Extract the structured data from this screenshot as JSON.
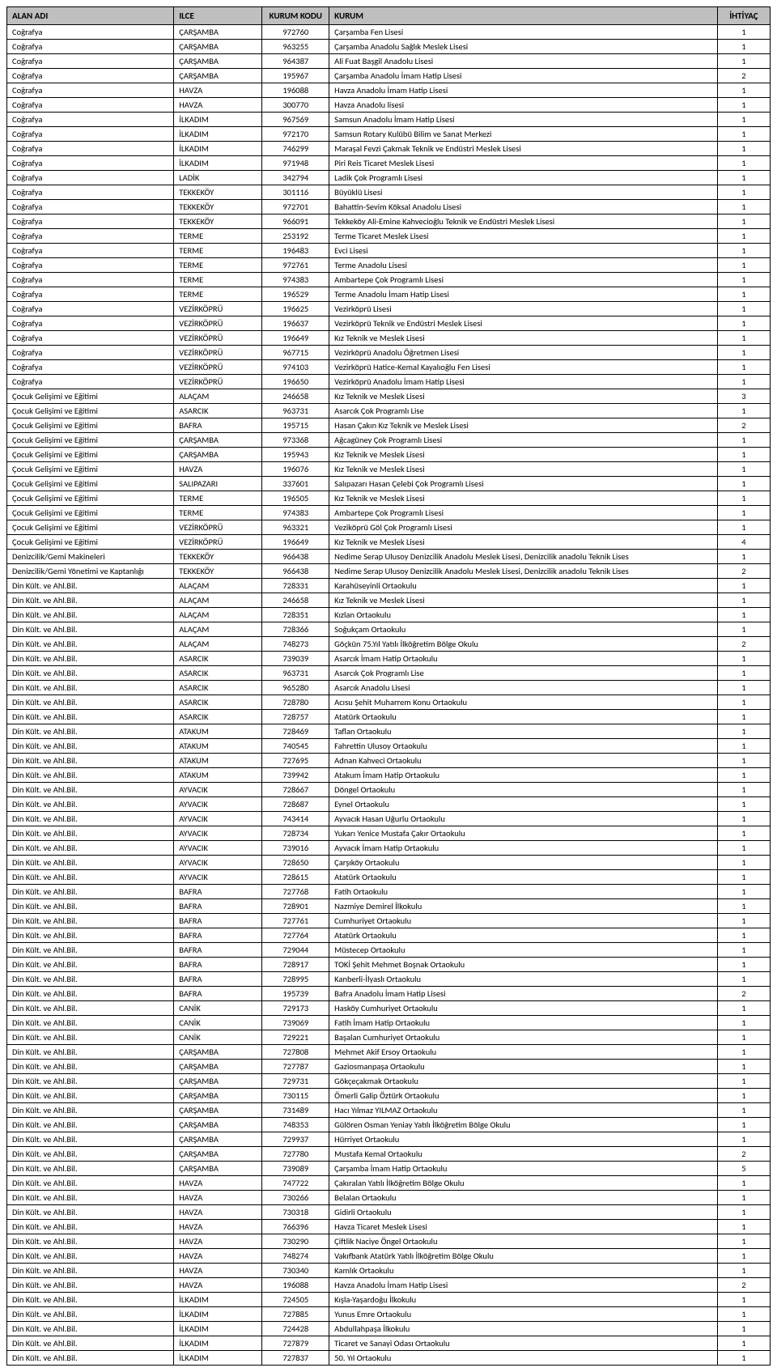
{
  "headers": {
    "alan": "ALAN ADI",
    "ilce": "ILCE",
    "kod": "KURUM KODU",
    "kurum": "KURUM",
    "ihtiyac": "İHTİYAÇ"
  },
  "rows": [
    [
      "Coğrafya",
      "ÇARŞAMBA",
      "972760",
      "Çarşamba Fen Lisesi",
      "1"
    ],
    [
      "Coğrafya",
      "ÇARŞAMBA",
      "963255",
      "Çarşamba Anadolu Sağlık Meslek Lisesi",
      "1"
    ],
    [
      "Coğrafya",
      "ÇARŞAMBA",
      "964387",
      "Ali Fuat Başgil Anadolu Lisesi",
      "1"
    ],
    [
      "Coğrafya",
      "ÇARŞAMBA",
      "195967",
      "Çarşamba Anadolu İmam Hatip Lisesi",
      "2"
    ],
    [
      "Coğrafya",
      "HAVZA",
      "196088",
      "Havza Anadolu İmam Hatip Lisesi",
      "1"
    ],
    [
      "Coğrafya",
      "HAVZA",
      "300770",
      "Havza Anadolu lisesi",
      "1"
    ],
    [
      "Coğrafya",
      "İLKADIM",
      "967569",
      "Samsun Anadolu İmam Hatip Lisesi",
      "1"
    ],
    [
      "Coğrafya",
      "İLKADIM",
      "972170",
      "Samsun Rotary Kulübü Bilim ve Sanat Merkezi",
      "1"
    ],
    [
      "Coğrafya",
      "İLKADIM",
      "746299",
      "Maraşal Fevzi Çakmak Teknik ve Endüstri Meslek Lisesi",
      "1"
    ],
    [
      "Coğrafya",
      "İLKADIM",
      "971948",
      "Piri Reis Ticaret Meslek Lisesi",
      "1"
    ],
    [
      "Coğrafya",
      "LADİK",
      "342794",
      "Ladik Çok Programlı Lisesi",
      "1"
    ],
    [
      "Coğrafya",
      "TEKKEKÖY",
      "301116",
      "Büyüklü Lisesi",
      "1"
    ],
    [
      "Coğrafya",
      "TEKKEKÖY",
      "972701",
      "Bahattin-Sevim Köksal Anadolu Lisesi",
      "1"
    ],
    [
      "Coğrafya",
      "TEKKEKÖY",
      "966091",
      "Tekkeköy Ali-Emine Kahvecioğlu Teknik ve Endüstri Meslek Lisesi",
      "1"
    ],
    [
      "Coğrafya",
      "TERME",
      "253192",
      "Terme Ticaret Meslek Lisesi",
      "1"
    ],
    [
      "Coğrafya",
      "TERME",
      "196483",
      "Evci Lisesi",
      "1"
    ],
    [
      "Coğrafya",
      "TERME",
      "972761",
      "Terme Anadolu Lisesi",
      "1"
    ],
    [
      "Coğrafya",
      "TERME",
      "974383",
      "Ambartepe Çok Programlı Lisesi",
      "1"
    ],
    [
      "Coğrafya",
      "TERME",
      "196529",
      "Terme Anadolu İmam Hatip Lisesi",
      "1"
    ],
    [
      "Coğrafya",
      "VEZİRKÖPRÜ",
      "196625",
      "Vezirköprü Lisesi",
      "1"
    ],
    [
      "Coğrafya",
      "VEZİRKÖPRÜ",
      "196637",
      "Vezirköprü Teknik ve Endüstri Meslek Lisesi",
      "1"
    ],
    [
      "Coğrafya",
      "VEZİRKÖPRÜ",
      "196649",
      "Kız Teknik ve Meslek Lisesi",
      "1"
    ],
    [
      "Coğrafya",
      "VEZİRKÖPRÜ",
      "967715",
      "Vezirköprü Anadolu Öğretmen Lisesi",
      "1"
    ],
    [
      "Coğrafya",
      "VEZİRKÖPRÜ",
      "974103",
      "Vezirköprü Hatice-Kemal Kayalıoğlu Fen Lisesi",
      "1"
    ],
    [
      "Coğrafya",
      "VEZİRKÖPRÜ",
      "196650",
      "Vezirköprü Anadolu İmam Hatip Lisesi",
      "1"
    ],
    [
      "Çocuk Gelişimi ve Eğitimi",
      "ALAÇAM",
      "246658",
      "Kız Teknik ve Meslek Lisesi",
      "3"
    ],
    [
      "Çocuk Gelişimi ve Eğitimi",
      "ASARCIK",
      "963731",
      "Asarcık Çok Programlı Lise",
      "1"
    ],
    [
      "Çocuk Gelişimi ve Eğitimi",
      "BAFRA",
      "195715",
      "Hasan Çakın Kız Teknik ve Meslek Lisesi",
      "2"
    ],
    [
      "Çocuk Gelişimi ve Eğitimi",
      "ÇARŞAMBA",
      "973368",
      "Ağcagüney Çok Programlı Lisesi",
      "1"
    ],
    [
      "Çocuk Gelişimi ve Eğitimi",
      "ÇARŞAMBA",
      "195943",
      "Kız Teknik ve Meslek Lisesi",
      "1"
    ],
    [
      "Çocuk Gelişimi ve Eğitimi",
      "HAVZA",
      "196076",
      "Kız Teknik ve Meslek Lisesi",
      "1"
    ],
    [
      "Çocuk Gelişimi ve Eğitimi",
      "SALIPAZARI",
      "337601",
      "Salıpazarı Hasan Çelebi Çok Programlı Lisesi",
      "1"
    ],
    [
      "Çocuk Gelişimi ve Eğitimi",
      "TERME",
      "196505",
      "Kız Teknik ve Meslek Lisesi",
      "1"
    ],
    [
      "Çocuk Gelişimi ve Eğitimi",
      "TERME",
      "974383",
      "Ambartepe Çok Programlı Lisesi",
      "1"
    ],
    [
      "Çocuk Gelişimi ve Eğitimi",
      "VEZİRKÖPRÜ",
      "963321",
      "Veziköprü Göl Çok Programlı Lisesi",
      "1"
    ],
    [
      "Çocuk Gelişimi ve Eğitimi",
      "VEZİRKÖPRÜ",
      "196649",
      "Kız Teknik ve Meslek Lisesi",
      "4"
    ],
    [
      "Denizcilik/Gemi Makineleri",
      "TEKKEKÖY",
      "966438",
      "Nedime Serap Ulusoy Denizcilik Anadolu Meslek Lisesi, Denizcilik anadolu Teknik Lises",
      "1"
    ],
    [
      "Denizcilik/Gemi Yönetimi ve Kaptanlığı",
      "TEKKEKÖY",
      "966438",
      "Nedime Serap Ulusoy Denizcilik Anadolu Meslek Lisesi, Denizcilik anadolu Teknik Lises",
      "2"
    ],
    [
      "Din Kült. ve Ahl.Bil.",
      "ALAÇAM",
      "728331",
      "Karahüseyinli Ortaokulu",
      "1"
    ],
    [
      "Din Kült. ve Ahl.Bil.",
      "ALAÇAM",
      "246658",
      "Kız Teknik ve Meslek Lisesi",
      "1"
    ],
    [
      "Din Kült. ve Ahl.Bil.",
      "ALAÇAM",
      "728351",
      "Kızlan Ortaokulu",
      "1"
    ],
    [
      "Din Kült. ve Ahl.Bil.",
      "ALAÇAM",
      "728366",
      "Soğukçam Ortaokulu",
      "1"
    ],
    [
      "Din Kült. ve Ahl.Bil.",
      "ALAÇAM",
      "748273",
      "Göçkün 75.Yıl Yatılı İlköğretim Bölge Okulu",
      "2"
    ],
    [
      "Din Kült. ve Ahl.Bil.",
      "ASARCIK",
      "739039",
      "Asarcık İmam Hatip Ortaokulu",
      "1"
    ],
    [
      "Din Kült. ve Ahl.Bil.",
      "ASARCIK",
      "963731",
      "Asarcık Çok Programlı Lise",
      "1"
    ],
    [
      "Din Kült. ve Ahl.Bil.",
      "ASARCIK",
      "965280",
      "Asarcık Anadolu Lisesi",
      "1"
    ],
    [
      "Din Kült. ve Ahl.Bil.",
      "ASARCIK",
      "728780",
      "Acısu Şehit Muharrem Konu Ortaokulu",
      "1"
    ],
    [
      "Din Kült. ve Ahl.Bil.",
      "ASARCIK",
      "728757",
      "Atatürk Ortaokulu",
      "1"
    ],
    [
      "Din Kült. ve Ahl.Bil.",
      "ATAKUM",
      "728469",
      "Taflan Ortaokulu",
      "1"
    ],
    [
      "Din Kült. ve Ahl.Bil.",
      "ATAKUM",
      "740545",
      "Fahrettin Ulusoy Ortaokulu",
      "1"
    ],
    [
      "Din Kült. ve Ahl.Bil.",
      "ATAKUM",
      "727695",
      "Adnan Kahveci Ortaokulu",
      "1"
    ],
    [
      "Din Kült. ve Ahl.Bil.",
      "ATAKUM",
      "739942",
      "Atakum İmam Hatip Ortaokulu",
      "1"
    ],
    [
      "Din Kült. ve Ahl.Bil.",
      "AYVACIK",
      "728667",
      "Döngel Ortaokulu",
      "1"
    ],
    [
      "Din Kült. ve Ahl.Bil.",
      "AYVACIK",
      "728687",
      "Eynel Ortaokulu",
      "1"
    ],
    [
      "Din Kült. ve Ahl.Bil.",
      "AYVACIK",
      "743414",
      "Ayvacık Hasan Uğurlu Ortaokulu",
      "1"
    ],
    [
      "Din Kült. ve Ahl.Bil.",
      "AYVACIK",
      "728734",
      "Yukarı Yenice Mustafa Çakır Ortaokulu",
      "1"
    ],
    [
      "Din Kült. ve Ahl.Bil.",
      "AYVACIK",
      "739016",
      "Ayvacık İmam Hatip Ortaokulu",
      "1"
    ],
    [
      "Din Kült. ve Ahl.Bil.",
      "AYVACIK",
      "728650",
      "Çarşıköy Ortaokulu",
      "1"
    ],
    [
      "Din Kült. ve Ahl.Bil.",
      "AYVACIK",
      "728615",
      "Atatürk Ortaokulu",
      "1"
    ],
    [
      "Din Kült. ve Ahl.Bil.",
      "BAFRA",
      "727768",
      "Fatih Ortaokulu",
      "1"
    ],
    [
      "Din Kült. ve Ahl.Bil.",
      "BAFRA",
      "728901",
      "Nazmiye Demirel İlkokulu",
      "1"
    ],
    [
      "Din Kült. ve Ahl.Bil.",
      "BAFRA",
      "727761",
      "Cumhuriyet Ortaokulu",
      "1"
    ],
    [
      "Din Kült. ve Ahl.Bil.",
      "BAFRA",
      "727764",
      "Atatürk Ortaokulu",
      "1"
    ],
    [
      "Din Kült. ve Ahl.Bil.",
      "BAFRA",
      "729044",
      "Müstecep Ortaokulu",
      "1"
    ],
    [
      "Din Kült. ve Ahl.Bil.",
      "BAFRA",
      "728917",
      "TOKİ Şehit Mehmet Boşnak Ortaokulu",
      "1"
    ],
    [
      "Din Kült. ve Ahl.Bil.",
      "BAFRA",
      "728995",
      "Kanberli-İlyaslı Ortaokulu",
      "1"
    ],
    [
      "Din Kült. ve Ahl.Bil.",
      "BAFRA",
      "195739",
      "Bafra Anadolu İmam Hatip Lisesi",
      "2"
    ],
    [
      "Din Kült. ve Ahl.Bil.",
      "CANİK",
      "729173",
      "Hasköy Cumhuriyet Ortaokulu",
      "1"
    ],
    [
      "Din Kült. ve Ahl.Bil.",
      "CANİK",
      "739069",
      "Fatih İmam Hatip Ortaokulu",
      "1"
    ],
    [
      "Din Kült. ve Ahl.Bil.",
      "CANİK",
      "729221",
      "Başalan Cumhuriyet Ortaokulu",
      "1"
    ],
    [
      "Din Kült. ve Ahl.Bil.",
      "ÇARŞAMBA",
      "727808",
      "Mehmet Akif Ersoy Ortaokulu",
      "1"
    ],
    [
      "Din Kült. ve Ahl.Bil.",
      "ÇARŞAMBA",
      "727787",
      "Gaziosmanpaşa Ortaokulu",
      "1"
    ],
    [
      "Din Kült. ve Ahl.Bil.",
      "ÇARŞAMBA",
      "729731",
      "Gökçeçakmak Ortaokulu",
      "1"
    ],
    [
      "Din Kült. ve Ahl.Bil.",
      "ÇARŞAMBA",
      "730115",
      "Ömerli Galip Öztürk Ortaokulu",
      "1"
    ],
    [
      "Din Kült. ve Ahl.Bil.",
      "ÇARŞAMBA",
      "731489",
      "Hacı Yılmaz YILMAZ Ortaokulu",
      "1"
    ],
    [
      "Din Kült. ve Ahl.Bil.",
      "ÇARŞAMBA",
      "748353",
      "Gülören Osman Yeniay Yatılı İlköğretim Bölge Okulu",
      "1"
    ],
    [
      "Din Kült. ve Ahl.Bil.",
      "ÇARŞAMBA",
      "729937",
      "Hürriyet Ortaokulu",
      "1"
    ],
    [
      "Din Kült. ve Ahl.Bil.",
      "ÇARŞAMBA",
      "727780",
      "Mustafa Kemal Ortaokulu",
      "2"
    ],
    [
      "Din Kült. ve Ahl.Bil.",
      "ÇARŞAMBA",
      "739089",
      "Çarşamba İmam Hatip Ortaokulu",
      "5"
    ],
    [
      "Din Kült. ve Ahl.Bil.",
      "HAVZA",
      "747722",
      "Çakıralan Yatılı İlköğretim Bölge Okulu",
      "1"
    ],
    [
      "Din Kült. ve Ahl.Bil.",
      "HAVZA",
      "730266",
      "Belalan Ortaokulu",
      "1"
    ],
    [
      "Din Kült. ve Ahl.Bil.",
      "HAVZA",
      "730318",
      "Gidirli Ortaokulu",
      "1"
    ],
    [
      "Din Kült. ve Ahl.Bil.",
      "HAVZA",
      "766396",
      "Havza Ticaret Meslek Lisesi",
      "1"
    ],
    [
      "Din Kült. ve Ahl.Bil.",
      "HAVZA",
      "730290",
      "Çiftlik Naciye Öngel Ortaokulu",
      "1"
    ],
    [
      "Din Kült. ve Ahl.Bil.",
      "HAVZA",
      "748274",
      "Vakıfbank Atatürk Yatılı İlköğretim Bölge Okulu",
      "1"
    ],
    [
      "Din Kült. ve Ahl.Bil.",
      "HAVZA",
      "730340",
      "Kamlık Ortaokulu",
      "1"
    ],
    [
      "Din Kült. ve Ahl.Bil.",
      "HAVZA",
      "196088",
      "Havza Anadolu İmam Hatip Lisesi",
      "2"
    ],
    [
      "Din Kült. ve Ahl.Bil.",
      "İLKADIM",
      "724505",
      "Kışla-Yaşardoğu İlkokulu",
      "1"
    ],
    [
      "Din Kült. ve Ahl.Bil.",
      "İLKADIM",
      "727885",
      "Yunus Emre Ortaokulu",
      "1"
    ],
    [
      "Din Kült. ve Ahl.Bil.",
      "İLKADIM",
      "724428",
      "Abdullahpaşa İlkokulu",
      "1"
    ],
    [
      "Din Kült. ve Ahl.Bil.",
      "İLKADIM",
      "727879",
      "Ticaret ve Sanayi Odası Ortaokulu",
      "1"
    ],
    [
      "Din Kült. ve Ahl.Bil.",
      "İLKADIM",
      "727837",
      "50. Yıl Ortaokulu",
      "1"
    ]
  ]
}
